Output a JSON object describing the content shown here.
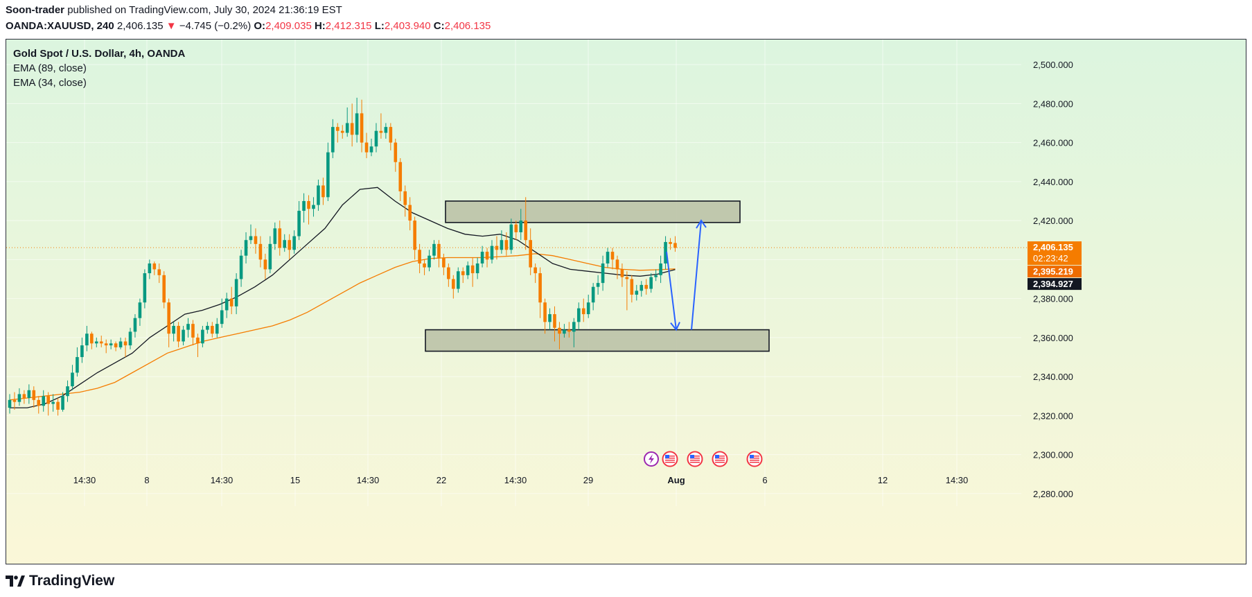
{
  "header": {
    "author": "Soon-trader",
    "published_text": "published on TradingView.com, July 30, 2024 21:36:19 EST",
    "symbol": "OANDA:XAUUSD, 240",
    "last": "2,406.135",
    "change_arrow": "▼",
    "change": "−4.745 (−0.2%)",
    "open_label": "O:",
    "open": "2,409.035",
    "high_label": "H:",
    "high": "2,412.315",
    "low_label": "L:",
    "low": "2,403.940",
    "close_label": "C:",
    "close": "2,406.135"
  },
  "legend": {
    "title": "Gold Spot / U.S. Dollar, 4h, OANDA",
    "ema89": "EMA (89, close)",
    "ema34": "EMA (34, close)"
  },
  "brand": {
    "name": "TradingView"
  },
  "colors": {
    "up": "#089981",
    "down": "#f57c00",
    "ema89": "#f57c00",
    "ema34": "#131722",
    "bg_top": "#dcf5df",
    "bg_bottom": "#fbf7d8",
    "zone_fill": "#b8c0a4",
    "arrow": "#2962ff",
    "last_price": "#f57c00",
    "ema89_badge": "#ef6c00",
    "ema34_badge": "#131722"
  },
  "chart_data": {
    "type": "candlestick",
    "timeframe": "4h",
    "ylim": [
      2265,
      2510
    ],
    "x_ticks": [
      "14:30",
      "8",
      "14:30",
      "15",
      "14:30",
      "22",
      "14:30",
      "29",
      "Aug",
      "6",
      "12",
      "14:30"
    ],
    "y_ticks": [
      "2,280.000",
      "2,300.000",
      "2,320.000",
      "2,340.000",
      "2,360.000",
      "2,380.000",
      "2,400.000",
      "2,420.000",
      "2,440.000",
      "2,460.000",
      "2,480.000",
      "2,500.000"
    ],
    "y_tick_values": [
      2280,
      2300,
      2320,
      2340,
      2360,
      2380,
      2400,
      2420,
      2440,
      2460,
      2480,
      2500
    ],
    "last_price": 2406.135,
    "price_labels": [
      {
        "name": "last",
        "value": "2,406.135",
        "sub": "02:23:42"
      },
      {
        "name": "ema89",
        "value": "2,395.219"
      },
      {
        "name": "ema34",
        "value": "2,394.927"
      }
    ],
    "series": [
      {
        "name": "EMA (89, close)",
        "values": [
          2328,
          2329,
          2330,
          2331,
          2332,
          2334,
          2337,
          2342,
          2347,
          2352,
          2355,
          2358,
          2360,
          2362,
          2364,
          2366,
          2369,
          2373,
          2378,
          2383,
          2388,
          2392,
          2396,
          2399,
          2400.5,
          2401,
          2401,
          2401,
          2401.5,
          2402,
          2403,
          2402,
          2400,
          2398,
          2396,
          2395,
          2394.5,
          2394.8,
          2395.2
        ]
      },
      {
        "name": "EMA (34, close)",
        "values": [
          2324,
          2324,
          2326,
          2330,
          2336,
          2342,
          2347,
          2352,
          2360,
          2366,
          2372,
          2374,
          2377,
          2381,
          2386,
          2392,
          2400,
          2408,
          2416,
          2428,
          2436,
          2437,
          2430,
          2424,
          2420,
          2416,
          2413,
          2412,
          2413,
          2410,
          2404,
          2398,
          2395,
          2394,
          2393,
          2392,
          2391.5,
          2392.5,
          2394.9
        ]
      }
    ],
    "candles": [
      [
        2324,
        2328,
        2321,
        2331
      ],
      [
        2328,
        2327,
        2323,
        2332
      ],
      [
        2327,
        2331,
        2325,
        2334
      ],
      [
        2331,
        2329,
        2326,
        2333
      ],
      [
        2329,
        2333,
        2326,
        2336
      ],
      [
        2333,
        2328,
        2324,
        2335
      ],
      [
        2328,
        2325,
        2321,
        2330
      ],
      [
        2325,
        2330,
        2322,
        2333
      ],
      [
        2330,
        2326,
        2320,
        2332
      ],
      [
        2326,
        2327,
        2322,
        2331
      ],
      [
        2327,
        2323,
        2320,
        2329
      ],
      [
        2323,
        2330,
        2322,
        2332
      ],
      [
        2330,
        2335,
        2327,
        2338
      ],
      [
        2335,
        2342,
        2333,
        2346
      ],
      [
        2342,
        2350,
        2340,
        2355
      ],
      [
        2350,
        2356,
        2347,
        2360
      ],
      [
        2356,
        2362,
        2353,
        2366
      ],
      [
        2362,
        2357,
        2354,
        2363
      ],
      [
        2357,
        2358,
        2355,
        2360
      ],
      [
        2358,
        2357,
        2355,
        2361
      ],
      [
        2357,
        2356,
        2352,
        2359
      ],
      [
        2356,
        2357,
        2354,
        2359
      ],
      [
        2357,
        2355,
        2353,
        2358
      ],
      [
        2355,
        2358,
        2354,
        2360
      ],
      [
        2358,
        2356,
        2350,
        2360
      ],
      [
        2356,
        2363,
        2354,
        2365
      ],
      [
        2363,
        2370,
        2360,
        2372
      ],
      [
        2370,
        2378,
        2366,
        2380
      ],
      [
        2378,
        2393,
        2375,
        2395
      ],
      [
        2393,
        2398,
        2390,
        2400
      ],
      [
        2398,
        2395,
        2392,
        2399
      ],
      [
        2395,
        2392,
        2388,
        2398
      ],
      [
        2392,
        2378,
        2375,
        2394
      ],
      [
        2378,
        2362,
        2355,
        2380
      ],
      [
        2362,
        2366,
        2358,
        2368
      ],
      [
        2366,
        2358,
        2355,
        2368
      ],
      [
        2358,
        2364,
        2356,
        2366
      ],
      [
        2364,
        2367,
        2360,
        2370
      ],
      [
        2367,
        2360,
        2356,
        2369
      ],
      [
        2360,
        2357,
        2350,
        2362
      ],
      [
        2357,
        2364,
        2355,
        2366
      ],
      [
        2364,
        2366,
        2362,
        2368
      ],
      [
        2366,
        2362,
        2360,
        2368
      ],
      [
        2362,
        2367,
        2360,
        2370
      ],
      [
        2367,
        2374,
        2365,
        2380
      ],
      [
        2374,
        2380,
        2370,
        2383
      ],
      [
        2380,
        2376,
        2372,
        2386
      ],
      [
        2376,
        2390,
        2372,
        2393
      ],
      [
        2390,
        2402,
        2386,
        2405
      ],
      [
        2402,
        2410,
        2398,
        2414
      ],
      [
        2410,
        2412,
        2408,
        2418
      ],
      [
        2412,
        2408,
        2403,
        2416
      ],
      [
        2408,
        2400,
        2396,
        2412
      ],
      [
        2400,
        2395,
        2390,
        2403
      ],
      [
        2395,
        2408,
        2393,
        2412
      ],
      [
        2408,
        2416,
        2405,
        2419
      ],
      [
        2416,
        2406,
        2402,
        2420
      ],
      [
        2406,
        2410,
        2404,
        2413
      ],
      [
        2410,
        2405,
        2400,
        2413
      ],
      [
        2405,
        2412,
        2403,
        2415
      ],
      [
        2412,
        2425,
        2410,
        2430
      ],
      [
        2425,
        2430,
        2419,
        2434
      ],
      [
        2430,
        2426,
        2418,
        2433
      ],
      [
        2426,
        2428,
        2422,
        2432
      ],
      [
        2428,
        2438,
        2425,
        2441
      ],
      [
        2438,
        2432,
        2428,
        2442
      ],
      [
        2432,
        2455,
        2430,
        2460
      ],
      [
        2455,
        2468,
        2452,
        2472
      ],
      [
        2468,
        2466,
        2460,
        2470
      ],
      [
        2466,
        2465,
        2462,
        2469
      ],
      [
        2465,
        2470,
        2463,
        2478
      ],
      [
        2470,
        2464,
        2458,
        2480
      ],
      [
        2464,
        2475,
        2460,
        2483
      ],
      [
        2475,
        2460,
        2455,
        2482
      ],
      [
        2460,
        2455,
        2452,
        2465
      ],
      [
        2455,
        2458,
        2453,
        2462
      ],
      [
        2458,
        2466,
        2455,
        2470
      ],
      [
        2466,
        2465,
        2462,
        2475
      ],
      [
        2465,
        2468,
        2462,
        2470
      ],
      [
        2468,
        2460,
        2456,
        2470
      ],
      [
        2460,
        2450,
        2445,
        2462
      ],
      [
        2450,
        2435,
        2430,
        2452
      ],
      [
        2435,
        2428,
        2422,
        2438
      ],
      [
        2428,
        2420,
        2415,
        2432
      ],
      [
        2420,
        2405,
        2400,
        2422
      ],
      [
        2405,
        2398,
        2393,
        2408
      ],
      [
        2398,
        2396,
        2392,
        2400
      ],
      [
        2396,
        2402,
        2394,
        2405
      ],
      [
        2402,
        2408,
        2400,
        2410
      ],
      [
        2408,
        2401,
        2396,
        2410
      ],
      [
        2401,
        2396,
        2392,
        2403
      ],
      [
        2396,
        2390,
        2386,
        2398
      ],
      [
        2390,
        2385,
        2380,
        2392
      ],
      [
        2385,
        2394,
        2383,
        2396
      ],
      [
        2394,
        2392,
        2388,
        2396
      ],
      [
        2392,
        2397,
        2390,
        2399
      ],
      [
        2397,
        2393,
        2386,
        2401
      ],
      [
        2393,
        2398,
        2390,
        2401
      ],
      [
        2398,
        2404,
        2396,
        2407
      ],
      [
        2404,
        2400,
        2396,
        2406
      ],
      [
        2400,
        2407,
        2398,
        2410
      ],
      [
        2407,
        2405,
        2400,
        2412
      ],
      [
        2405,
        2410,
        2403,
        2415
      ],
      [
        2410,
        2405,
        2402,
        2414
      ],
      [
        2405,
        2418,
        2403,
        2421
      ],
      [
        2418,
        2414,
        2410,
        2420
      ],
      [
        2414,
        2420,
        2410,
        2426
      ],
      [
        2420,
        2410,
        2405,
        2432
      ],
      [
        2410,
        2396,
        2392,
        2416
      ],
      [
        2396,
        2393,
        2388,
        2398
      ],
      [
        2393,
        2378,
        2370,
        2396
      ],
      [
        2378,
        2368,
        2362,
        2380
      ],
      [
        2368,
        2372,
        2364,
        2375
      ],
      [
        2372,
        2365,
        2358,
        2376
      ],
      [
        2365,
        2362,
        2354,
        2368
      ],
      [
        2362,
        2364,
        2360,
        2367
      ],
      [
        2364,
        2363,
        2360,
        2368
      ],
      [
        2363,
        2368,
        2355,
        2370
      ],
      [
        2368,
        2375,
        2364,
        2378
      ],
      [
        2375,
        2372,
        2368,
        2380
      ],
      [
        2372,
        2378,
        2370,
        2382
      ],
      [
        2378,
        2386,
        2374,
        2388
      ],
      [
        2386,
        2388,
        2382,
        2392
      ],
      [
        2388,
        2398,
        2384,
        2402
      ],
      [
        2398,
        2404,
        2396,
        2406
      ],
      [
        2404,
        2400,
        2395,
        2406
      ],
      [
        2400,
        2395,
        2390,
        2402
      ],
      [
        2395,
        2391,
        2386,
        2398
      ],
      [
        2391,
        2390,
        2374,
        2394
      ],
      [
        2390,
        2382,
        2378,
        2392
      ],
      [
        2382,
        2384,
        2379,
        2387
      ],
      [
        2384,
        2387,
        2381,
        2389
      ],
      [
        2387,
        2385,
        2382,
        2390
      ],
      [
        2385,
        2391,
        2383,
        2393
      ],
      [
        2391,
        2392,
        2389,
        2395
      ],
      [
        2392,
        2398,
        2388,
        2402
      ],
      [
        2398,
        2409,
        2395,
        2412
      ],
      [
        2409,
        2408,
        2405,
        2411
      ],
      [
        2408.5,
        2406,
        2404,
        2412
      ]
    ],
    "annotations": [
      {
        "type": "rectangle",
        "name": "resistance-zone",
        "y_range": [
          2419,
          2430
        ],
        "x_start_index": 86,
        "x_end_index": 200
      },
      {
        "type": "rectangle",
        "name": "support-zone",
        "y_range": [
          2353,
          2364
        ],
        "x_start_index": 84,
        "x_end_index": 205
      },
      {
        "type": "arrow",
        "name": "down-arrow",
        "from": 2404,
        "to": 2364
      },
      {
        "type": "arrow",
        "name": "up-arrow",
        "from": 2364,
        "to": 2420
      }
    ],
    "events_count": 5
  }
}
